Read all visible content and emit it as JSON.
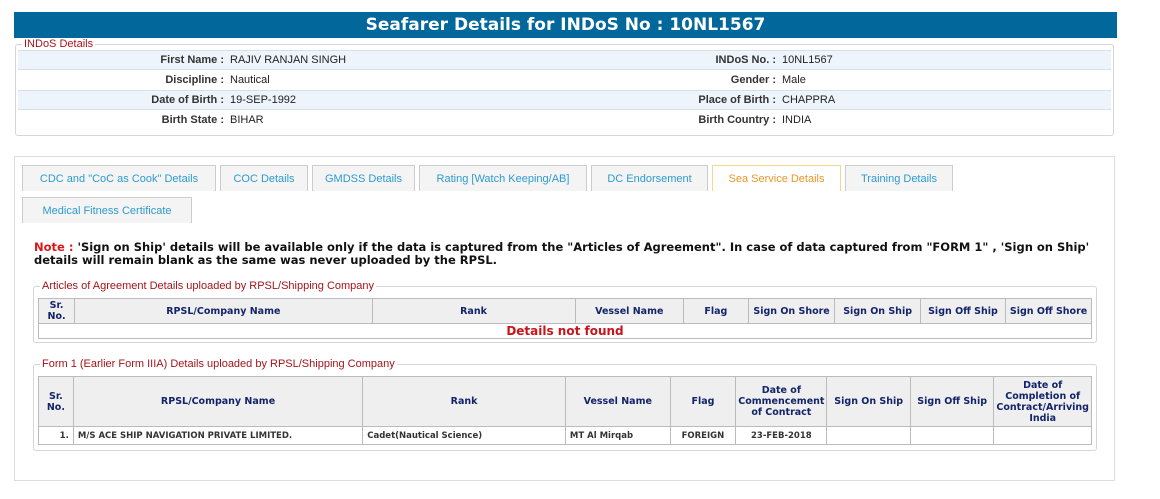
{
  "header": {
    "title": "Seafarer Details for INDoS No : 10NL1567"
  },
  "indos": {
    "legend": "INDoS Details",
    "rows": [
      {
        "l1": "First Name :",
        "v1": "RAJIV RANJAN SINGH",
        "l2": "INDoS No. :",
        "v2": "10NL1567"
      },
      {
        "l1": "Discipline :",
        "v1": "Nautical",
        "l2": "Gender :",
        "v2": "Male"
      },
      {
        "l1": "Date of Birth :",
        "v1": "19-SEP-1992",
        "l2": "Place of Birth :",
        "v2": "CHAPPRA"
      },
      {
        "l1": "Birth State :",
        "v1": "BIHAR",
        "l2": "Birth Country :",
        "v2": "INDIA"
      }
    ]
  },
  "tabs": [
    "CDC and \"CoC as Cook\" Details",
    "COC Details",
    "GMDSS Details",
    "Rating [Watch Keeping/AB]",
    "DC Endorsement",
    "Sea Service Details",
    "Training Details",
    "Medical Fitness Certificate"
  ],
  "active_tab": "Sea Service Details",
  "note": {
    "label": "Note :",
    "text": " 'Sign on Ship' details will be available only if the data is captured from the \"Articles of Agreement\". In case of data captured from \"FORM 1\" , 'Sign on Ship' details will remain blank as the same was never uploaded by the RPSL."
  },
  "articles": {
    "legend": "Articles of Agreement Details uploaded by RPSL/Shipping Company",
    "headers": [
      "Sr. No.",
      "RPSL/Company Name",
      "Rank",
      "Vessel Name",
      "Flag",
      "Sign On Shore",
      "Sign On Ship",
      "Sign Off Ship",
      "Sign Off Shore"
    ],
    "empty": "Details not found"
  },
  "form1": {
    "legend": "Form 1 (Earlier Form IIIA) Details uploaded by RPSL/Shipping Company",
    "headers": [
      "Sr. No.",
      "RPSL/Company Name",
      "Rank",
      "Vessel Name",
      "Flag",
      "Date of Commencement of Contract",
      "Sign On Ship",
      "Sign Off Ship",
      "Date of Completion of Contract/Arriving India"
    ],
    "rows": [
      [
        "1.",
        "M/S ACE SHIP NAVIGATION PRIVATE LIMITED.",
        "Cadet(Nautical Science)",
        "MT Al Mirqab",
        "FOREIGN",
        "23-FEB-2018",
        "",
        "",
        ""
      ]
    ]
  },
  "colors": {
    "header_bg": "#02679a",
    "legend": "#a4141a",
    "tab_text": "#2d9bd0",
    "active_tab": "#e8962a",
    "alert": "#e0151a"
  }
}
